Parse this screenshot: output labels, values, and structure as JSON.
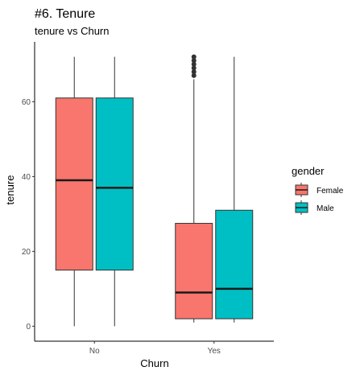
{
  "chart_data": {
    "type": "boxplot",
    "title": "#6. Tenure",
    "subtitle": "tenure vs Churn",
    "xlabel": "Churn",
    "ylabel": "tenure",
    "categories": [
      "No",
      "Yes"
    ],
    "ylim": [
      -4,
      76
    ],
    "yticks": [
      0,
      20,
      40,
      60
    ],
    "grid": false,
    "legend": {
      "title": "gender",
      "position": "right"
    },
    "series": [
      {
        "name": "Female",
        "color": "#F8766D",
        "boxes": [
          {
            "category": "No",
            "min": 0,
            "q1": 15,
            "median": 39,
            "q3": 61,
            "max": 72,
            "outliers": []
          },
          {
            "category": "Yes",
            "min": 1,
            "q1": 2,
            "median": 9,
            "q3": 27.5,
            "max": 66,
            "outliers": [
              67,
              68,
              69,
              70,
              71,
              72
            ]
          }
        ]
      },
      {
        "name": "Male",
        "color": "#00BFC4",
        "boxes": [
          {
            "category": "No",
            "min": 0,
            "q1": 15,
            "median": 37,
            "q3": 61,
            "max": 72,
            "outliers": []
          },
          {
            "category": "Yes",
            "min": 1,
            "q1": 2,
            "median": 10,
            "q3": 31,
            "max": 72,
            "outliers": []
          }
        ]
      }
    ]
  }
}
